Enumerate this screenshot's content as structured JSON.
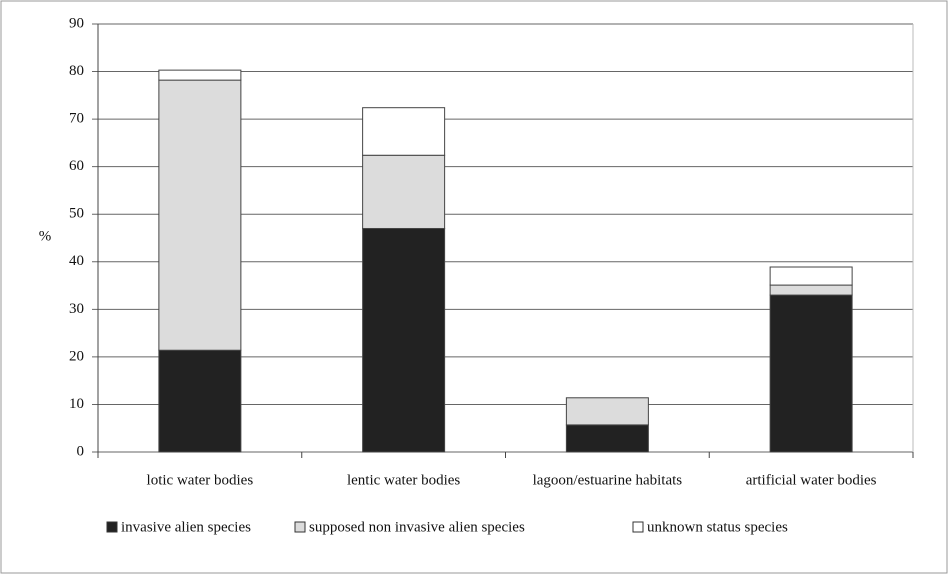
{
  "chart_data": {
    "type": "stacked_bar",
    "y_label": "%",
    "categories": [
      "lotic water bodies",
      "lentic water bodies",
      "lagoon/estuarine habitats",
      "artificial water bodies"
    ],
    "series": [
      {
        "name": "invasive alien species",
        "color": "#222222",
        "values": [
          21.4,
          47,
          5.7,
          33
        ]
      },
      {
        "name": "supposed non invasive alien species",
        "color": "#dcdcdc",
        "values": [
          56.8,
          15.4,
          5.7,
          2.1
        ]
      },
      {
        "name": "unknown status species",
        "color": "#ffffff",
        "values": [
          2.1,
          10,
          0,
          3.8
        ]
      }
    ],
    "ylim": [
      0,
      90
    ],
    "yticks": [
      0,
      10,
      20,
      30,
      40,
      50,
      60,
      70,
      80,
      90
    ],
    "grid": true
  }
}
